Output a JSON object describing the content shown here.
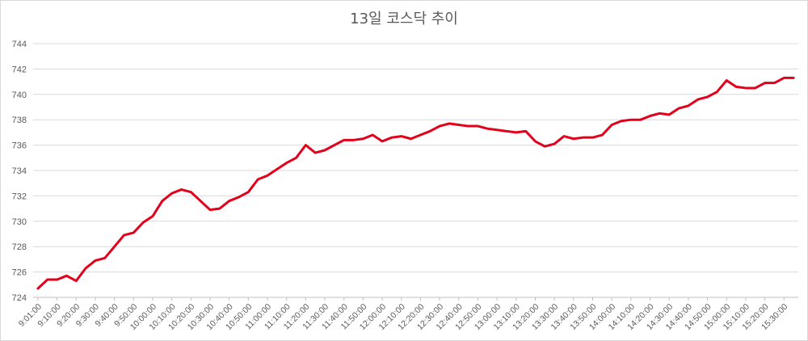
{
  "chart_data": {
    "type": "line",
    "title": "13일 코스닥 추이",
    "xlabel": "",
    "ylabel": "",
    "ylim": [
      724,
      744
    ],
    "yticks": [
      "724",
      "726",
      "728",
      "730",
      "732",
      "734",
      "736",
      "738",
      "740",
      "742",
      "744"
    ],
    "grid": true,
    "legend": "none",
    "line_color": "#e3001b",
    "x": [
      "9:01:00",
      "9:05:00",
      "9:10:00",
      "9:15:00",
      "9:20:00",
      "9:25:00",
      "9:30:00",
      "9:35:00",
      "9:40:00",
      "9:45:00",
      "9:50:00",
      "9:55:00",
      "10:00:00",
      "10:05:00",
      "10:10:00",
      "10:15:00",
      "10:20:00",
      "10:25:00",
      "10:30:00",
      "10:35:00",
      "10:40:00",
      "10:45:00",
      "10:50:00",
      "10:55:00",
      "11:00:00",
      "11:05:00",
      "11:10:00",
      "11:15:00",
      "11:20:00",
      "11:25:00",
      "11:30:00",
      "11:35:00",
      "11:40:00",
      "11:45:00",
      "11:50:00",
      "11:55:00",
      "12:00:00",
      "12:05:00",
      "12:10:00",
      "12:15:00",
      "12:20:00",
      "12:25:00",
      "12:30:00",
      "12:35:00",
      "12:40:00",
      "12:45:00",
      "12:50:00",
      "12:55:00",
      "13:00:00",
      "13:05:00",
      "13:10:00",
      "13:15:00",
      "13:20:00",
      "13:25:00",
      "13:30:00",
      "13:35:00",
      "13:40:00",
      "13:45:00",
      "13:50:00",
      "13:55:00",
      "14:00:00",
      "14:05:00",
      "14:10:00",
      "14:15:00",
      "14:20:00",
      "14:25:00",
      "14:30:00",
      "14:35:00",
      "14:40:00",
      "14:45:00",
      "14:50:00",
      "14:55:00",
      "15:00:00",
      "15:05:00",
      "15:10:00",
      "15:15:00",
      "15:20:00",
      "15:25:00",
      "15:30:00",
      "15:35:00"
    ],
    "xtick_labels": [
      "9:01:00",
      "9:10:00",
      "9:20:00",
      "9:30:00",
      "9:40:00",
      "9:50:00",
      "10:00:00",
      "10:10:00",
      "10:20:00",
      "10:30:00",
      "10:40:00",
      "10:50:00",
      "11:00:00",
      "11:10:00",
      "11:20:00",
      "11:30:00",
      "11:40:00",
      "11:50:00",
      "12:00:00",
      "12:10:00",
      "12:20:00",
      "12:30:00",
      "12:40:00",
      "12:50:00",
      "13:00:00",
      "13:10:00",
      "13:20:00",
      "13:30:00",
      "13:40:00",
      "13:50:00",
      "14:00:00",
      "14:10:00",
      "14:20:00",
      "14:30:00",
      "14:40:00",
      "14:50:00",
      "15:00:00",
      "15:10:00",
      "15:20:00",
      "15:30:00"
    ],
    "series": [
      {
        "values": [
          724.7,
          725.4,
          725.4,
          725.7,
          725.3,
          726.3,
          726.9,
          727.1,
          728.0,
          728.9,
          729.1,
          729.9,
          730.4,
          731.6,
          732.2,
          732.5,
          732.3,
          731.6,
          730.9,
          731.0,
          731.6,
          731.9,
          732.3,
          733.3,
          733.6,
          734.1,
          734.6,
          735.0,
          736.0,
          735.4,
          735.6,
          736.0,
          736.4,
          736.4,
          736.5,
          736.8,
          736.3,
          736.6,
          736.7,
          736.5,
          736.8,
          737.1,
          737.5,
          737.7,
          737.6,
          737.5,
          737.5,
          737.3,
          737.2,
          737.1,
          737.0,
          737.1,
          736.3,
          735.9,
          736.1,
          736.7,
          736.5,
          736.6,
          736.6,
          736.8,
          737.6,
          737.9,
          738.0,
          738.0,
          738.3,
          738.5,
          738.4,
          738.9,
          739.1,
          739.6,
          739.8,
          740.2,
          741.1,
          740.6,
          740.5,
          740.5,
          740.9,
          740.9,
          741.3,
          741.3
        ]
      }
    ]
  }
}
